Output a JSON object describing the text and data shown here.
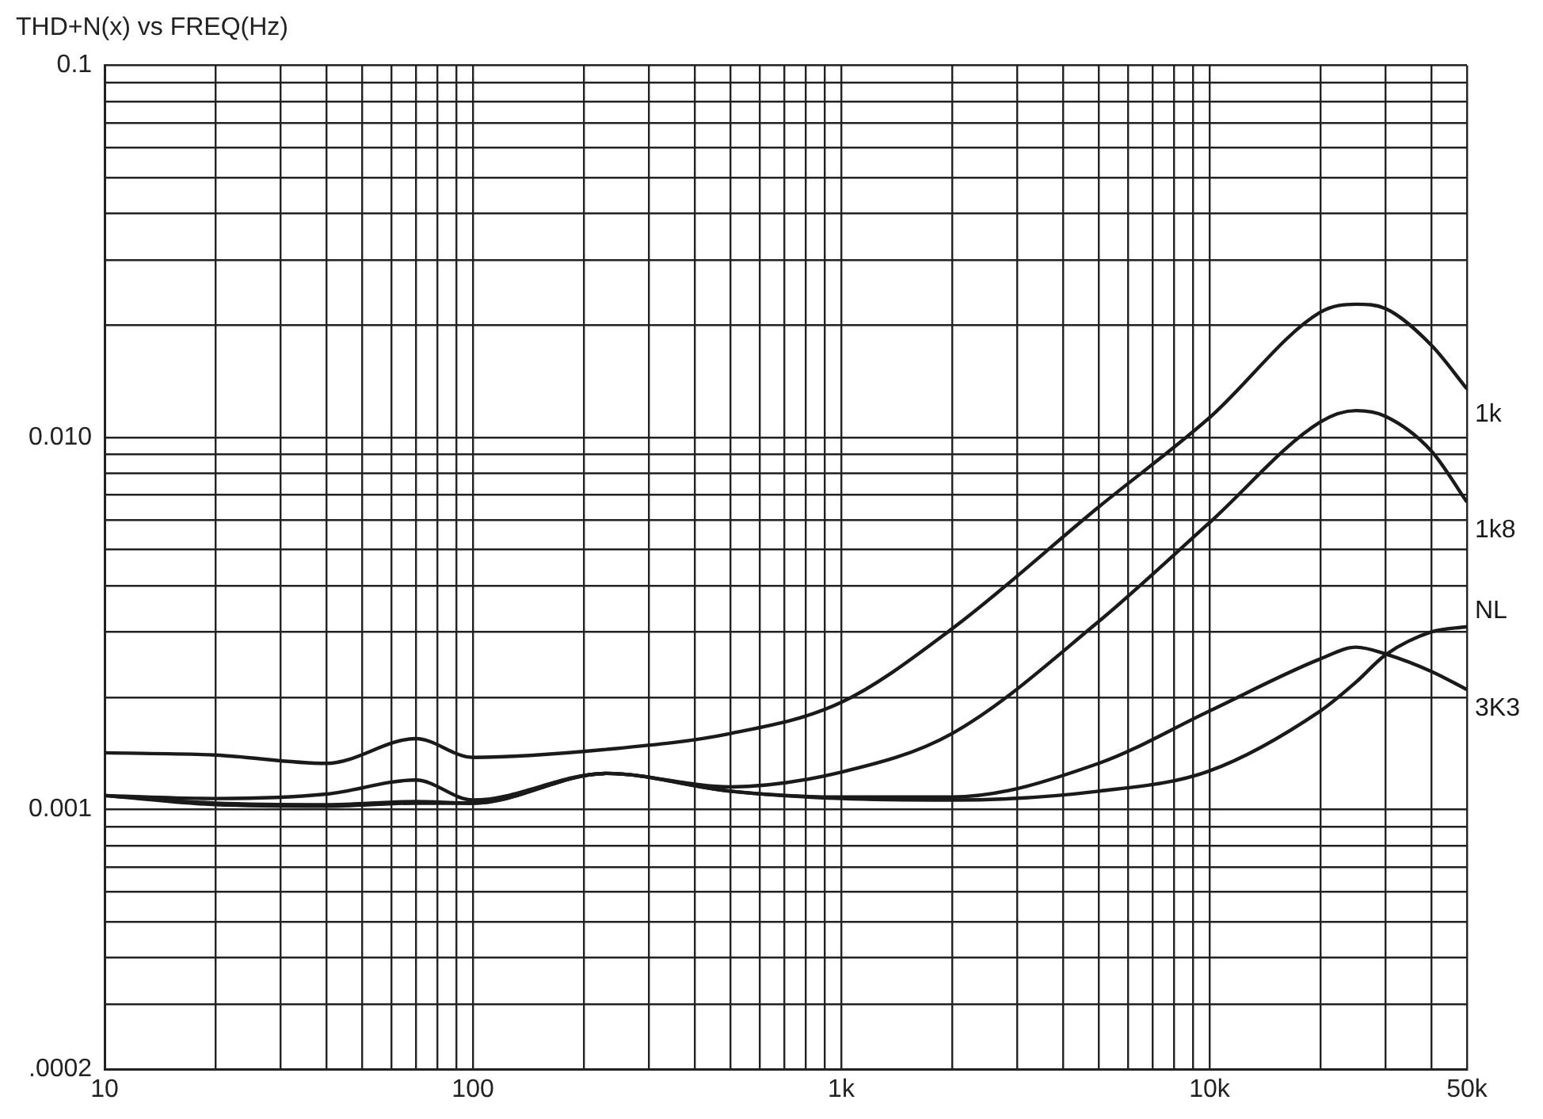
{
  "chart_data": {
    "type": "line",
    "title": "THD+N(x) vs FREQ(Hz)",
    "x": [
      10,
      20,
      40,
      70,
      100,
      230,
      500,
      1000,
      2000,
      5000,
      10000,
      20000,
      25000,
      30000,
      40000,
      50000
    ],
    "series": [
      {
        "name": "1k",
        "color": "#1a1a1a",
        "values": [
          0.00142,
          0.0014,
          0.00133,
          0.00155,
          0.00138,
          0.00145,
          0.0016,
          0.00194,
          0.00306,
          0.0065,
          0.0113,
          0.0217,
          0.0228,
          0.0222,
          0.0177,
          0.0135
        ]
      },
      {
        "name": "1k8",
        "color": "#1a1a1a",
        "values": [
          0.00109,
          0.00107,
          0.0011,
          0.0012,
          0.00106,
          0.00125,
          0.00115,
          0.00126,
          0.0016,
          0.0032,
          0.0059,
          0.011,
          0.0118,
          0.0114,
          0.0092,
          0.0067
        ]
      },
      {
        "name": "NL",
        "color": "#1a1a1a",
        "values": [
          0.00109,
          0.00104,
          0.00103,
          0.00105,
          0.00104,
          0.00125,
          0.00112,
          0.00107,
          0.00106,
          0.00112,
          0.00127,
          0.00184,
          0.0022,
          0.0026,
          0.003,
          0.0031
        ]
      },
      {
        "name": "3K3",
        "color": "#1a1a1a",
        "values": [
          0.00109,
          0.00103,
          0.00102,
          0.00104,
          0.00104,
          0.00125,
          0.00112,
          0.00108,
          0.00108,
          0.00133,
          0.00184,
          0.00254,
          0.00273,
          0.00262,
          0.00235,
          0.0021
        ]
      }
    ],
    "log": "xy",
    "xlim": [
      10,
      50000
    ],
    "xticks": [
      10,
      {
        "value": 20,
        "label": null
      },
      {
        "value": 30,
        "label": null
      },
      {
        "value": 40,
        "label": null
      },
      {
        "value": 50,
        "label": null
      },
      {
        "value": 60,
        "label": null
      },
      {
        "value": 70,
        "label": null
      },
      {
        "value": 80,
        "label": null
      },
      {
        "value": 90,
        "label": null
      },
      100,
      {
        "value": 200,
        "label": null
      },
      {
        "value": 300,
        "label": null
      },
      {
        "value": 400,
        "label": null
      },
      {
        "value": 500,
        "label": null
      },
      {
        "value": 600,
        "label": null
      },
      {
        "value": 700,
        "label": null
      },
      {
        "value": 800,
        "label": null
      },
      {
        "value": 900,
        "label": null
      },
      {
        "value": 1000,
        "label": "1k"
      },
      {
        "value": 2000,
        "label": null
      },
      {
        "value": 3000,
        "label": null
      },
      {
        "value": 4000,
        "label": null
      },
      {
        "value": 5000,
        "label": null
      },
      {
        "value": 6000,
        "label": null
      },
      {
        "value": 7000,
        "label": null
      },
      {
        "value": 8000,
        "label": null
      },
      {
        "value": 9000,
        "label": null
      },
      {
        "value": 10000,
        "label": "10k"
      },
      {
        "value": 20000,
        "label": null
      },
      {
        "value": 30000,
        "label": null
      },
      {
        "value": 40000,
        "label": null
      },
      {
        "value": 50000,
        "label": "50k"
      }
    ],
    "ylim": [
      0.0002,
      0.1
    ],
    "yticks": [
      {
        "value": 0.0002,
        "label": ".0002"
      },
      {
        "value": 0.0003,
        "label": null
      },
      {
        "value": 0.0004,
        "label": null
      },
      {
        "value": 0.0005,
        "label": null
      },
      {
        "value": 0.0006,
        "label": null
      },
      {
        "value": 0.0007,
        "label": null
      },
      {
        "value": 0.0008,
        "label": null
      },
      {
        "value": 0.0009,
        "label": null
      },
      0.001,
      {
        "value": 0.002,
        "label": null
      },
      {
        "value": 0.003,
        "label": null
      },
      {
        "value": 0.004,
        "label": null
      },
      {
        "value": 0.005,
        "label": null
      },
      {
        "value": 0.006,
        "label": null
      },
      {
        "value": 0.007,
        "label": null
      },
      {
        "value": 0.008,
        "label": null
      },
      {
        "value": 0.009,
        "label": null
      },
      {
        "value": 0.01,
        "label": "0.010"
      },
      {
        "value": 0.02,
        "label": null
      },
      {
        "value": 0.03,
        "label": null
      },
      {
        "value": 0.04,
        "label": null
      },
      {
        "value": 0.05,
        "label": null
      },
      {
        "value": 0.06,
        "label": null
      },
      {
        "value": 0.07,
        "label": null
      },
      {
        "value": 0.08,
        "label": null
      },
      {
        "value": 0.09,
        "label": null
      },
      0.1
    ],
    "grid": true,
    "legend": false
  }
}
